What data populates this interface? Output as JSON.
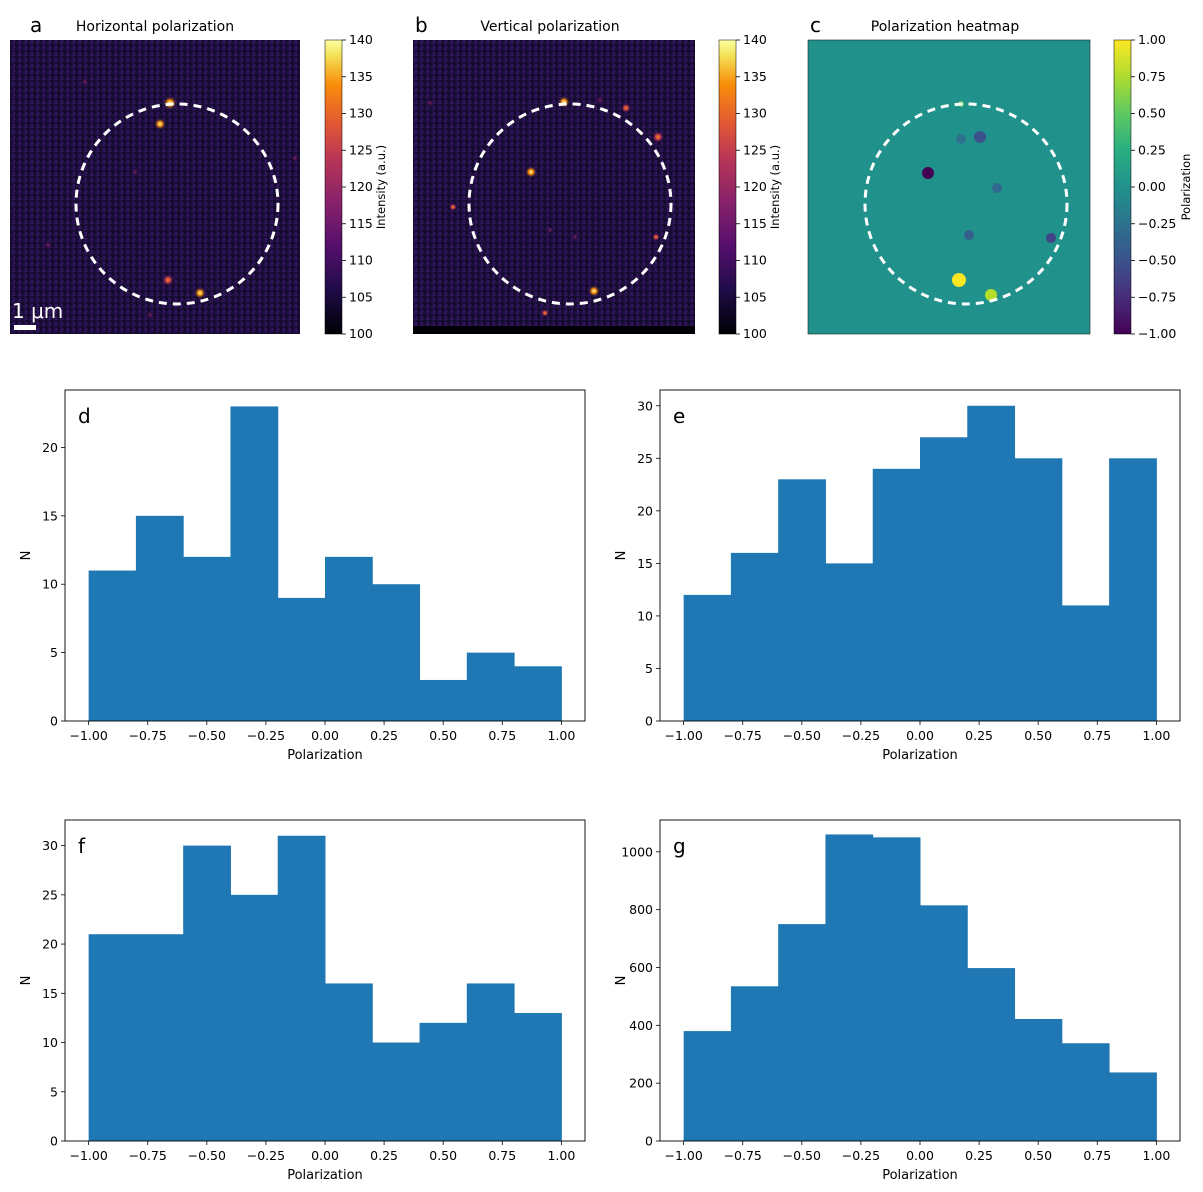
{
  "colors": {
    "bar": "#1f77b4",
    "heatmap_background": "#21918c",
    "dashed_circle": "#ffffff"
  },
  "image_panels": [
    {
      "letter": "a",
      "title": "Horizontal polarization",
      "colorbar_label": "Intensity (a.u.)",
      "colorbar_range": [
        100,
        140
      ],
      "colorbar_ticks": [
        "140",
        "135",
        "130",
        "125",
        "120",
        "115",
        "110",
        "105",
        "100"
      ],
      "colormap": "inferno",
      "scale_bar_label": "1 μm"
    },
    {
      "letter": "b",
      "title": "Vertical polarization",
      "colorbar_label": "Intensity (a.u.)",
      "colorbar_range": [
        100,
        140
      ],
      "colorbar_ticks": [
        "140",
        "135",
        "130",
        "125",
        "120",
        "115",
        "110",
        "105",
        "100"
      ],
      "colormap": "inferno"
    },
    {
      "letter": "c",
      "title": "Polarization heatmap",
      "colorbar_label": "Polarization",
      "colorbar_range": [
        -1,
        1
      ],
      "colorbar_ticks": [
        "1.00",
        "0.75",
        "0.50",
        "0.25",
        "0.00",
        "−0.25",
        "−0.50",
        "−0.75",
        "−1.00"
      ],
      "colormap": "viridis"
    }
  ],
  "chart_data": [
    {
      "panel": "d",
      "type": "bar",
      "xlabel": "Polarization",
      "ylabel": "N",
      "bin_edges": [
        -1.0,
        -0.8,
        -0.6,
        -0.4,
        -0.2,
        0.0,
        0.2,
        0.4,
        0.6,
        0.8,
        1.0
      ],
      "values": [
        11,
        15,
        12,
        23,
        9,
        12,
        10,
        3,
        5,
        4
      ],
      "xlim": [
        -1.1,
        1.1
      ],
      "ylim": [
        0,
        24.2
      ],
      "xticks": [
        "−1.00",
        "−0.75",
        "−0.50",
        "−0.25",
        "0.00",
        "0.25",
        "0.50",
        "0.75",
        "1.00"
      ],
      "yticks": [
        "0",
        "5",
        "10",
        "15",
        "20"
      ]
    },
    {
      "panel": "e",
      "type": "bar",
      "xlabel": "Polarization",
      "ylabel": "N",
      "bin_edges": [
        -1.0,
        -0.8,
        -0.6,
        -0.4,
        -0.2,
        0.0,
        0.2,
        0.4,
        0.6,
        0.8,
        1.0
      ],
      "values": [
        12,
        16,
        23,
        15,
        24,
        27,
        30,
        25,
        11,
        25
      ],
      "xlim": [
        -1.1,
        1.1
      ],
      "ylim": [
        0,
        31.5
      ],
      "xticks": [
        "−1.00",
        "−0.75",
        "−0.50",
        "−0.25",
        "0.00",
        "0.25",
        "0.50",
        "0.75",
        "1.00"
      ],
      "yticks": [
        "0",
        "5",
        "10",
        "15",
        "20",
        "25",
        "30"
      ]
    },
    {
      "panel": "f",
      "type": "bar",
      "xlabel": "Polarization",
      "ylabel": "N",
      "bin_edges": [
        -1.0,
        -0.8,
        -0.6,
        -0.4,
        -0.2,
        0.0,
        0.2,
        0.4,
        0.6,
        0.8,
        1.0
      ],
      "values": [
        21,
        21,
        30,
        25,
        31,
        16,
        10,
        12,
        16,
        13
      ],
      "xlim": [
        -1.1,
        1.1
      ],
      "ylim": [
        0,
        32.6
      ],
      "xticks": [
        "−1.00",
        "−0.75",
        "−0.50",
        "−0.25",
        "0.00",
        "0.25",
        "0.50",
        "0.75",
        "1.00"
      ],
      "yticks": [
        "0",
        "5",
        "10",
        "15",
        "20",
        "25",
        "30"
      ]
    },
    {
      "panel": "g",
      "type": "bar",
      "xlabel": "Polarization",
      "ylabel": "N",
      "bin_edges": [
        -1.0,
        -0.8,
        -0.6,
        -0.4,
        -0.2,
        0.0,
        0.2,
        0.4,
        0.6,
        0.8,
        1.0
      ],
      "values": [
        380,
        535,
        750,
        1060,
        1050,
        815,
        598,
        422,
        338,
        237
      ],
      "xlim": [
        -1.1,
        1.1
      ],
      "ylim": [
        0,
        1110
      ],
      "xticks": [
        "−1.00",
        "−0.75",
        "−0.50",
        "−0.25",
        "0.00",
        "0.25",
        "0.50",
        "0.75",
        "1.00"
      ],
      "yticks": [
        "0",
        "200",
        "400",
        "600",
        "800",
        "1000"
      ]
    }
  ]
}
